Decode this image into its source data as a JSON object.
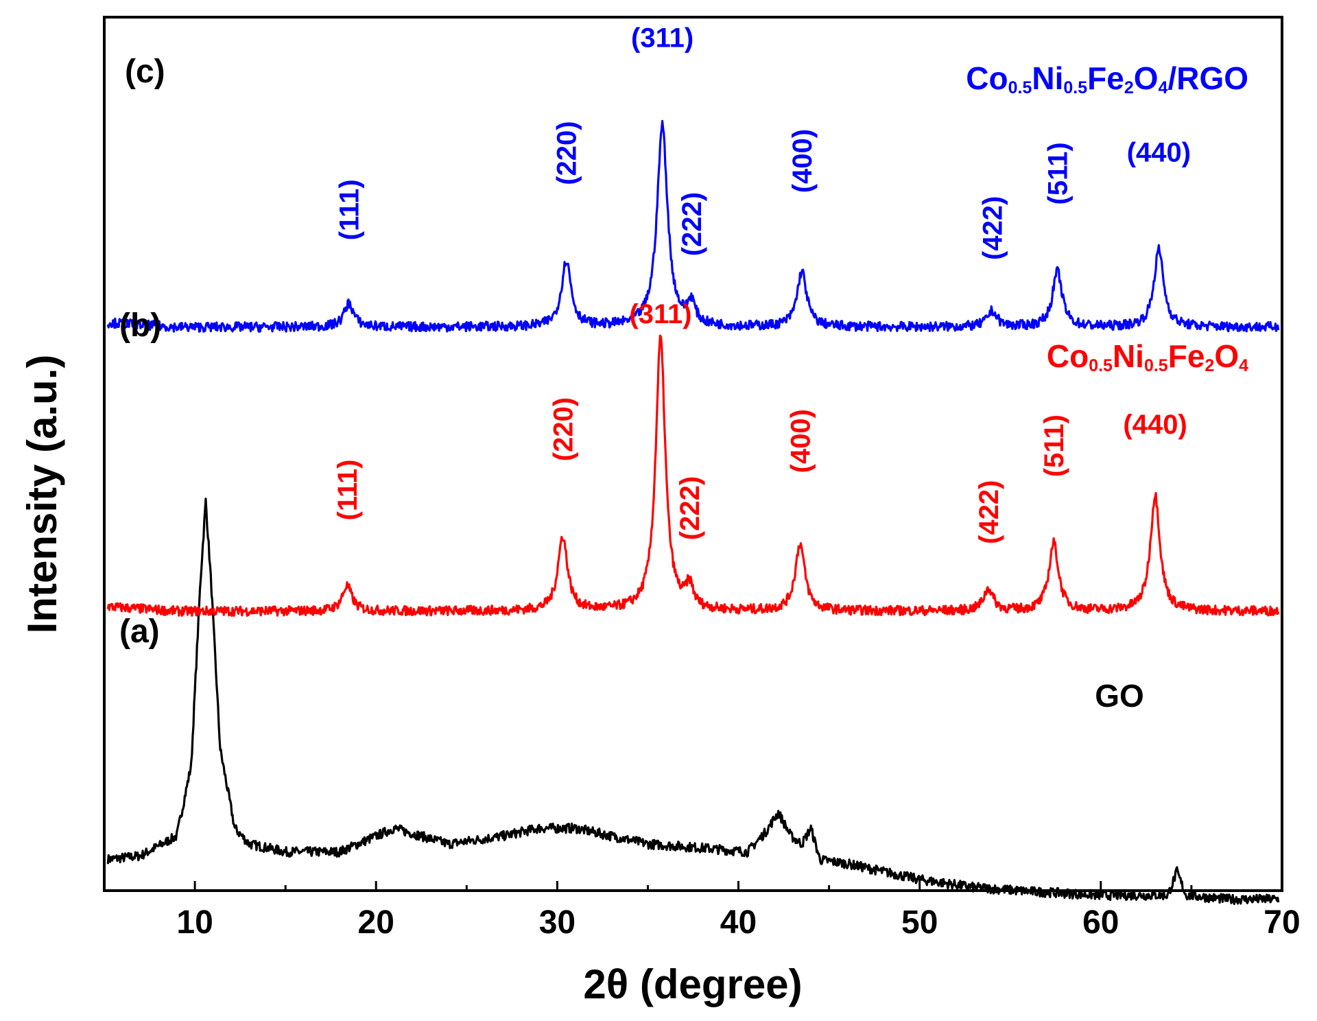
{
  "chart_data": {
    "type": "line",
    "title": "",
    "xlabel": "2θ (degree)",
    "ylabel": "Intensity (a.u.)",
    "xlim": [
      5,
      70
    ],
    "xticks": [
      10,
      20,
      30,
      40,
      50,
      60,
      70
    ],
    "yticks": [],
    "grid": false,
    "series": [
      {
        "key": "a",
        "panel_label": "(a)",
        "name": "GO",
        "name_parts": [
          {
            "t": "GO",
            "sub": false
          }
        ],
        "color": "#000000",
        "baseline": 0.1,
        "points": [
          [
            5,
            0.1
          ],
          [
            7,
            0.105
          ],
          [
            9,
            0.13
          ],
          [
            9.8,
            0.22
          ],
          [
            10.3,
            0.45
          ],
          [
            10.6,
            0.555
          ],
          [
            10.9,
            0.45
          ],
          [
            11.4,
            0.24
          ],
          [
            12.2,
            0.14
          ],
          [
            13,
            0.12
          ],
          [
            15,
            0.11
          ],
          [
            18,
            0.11
          ],
          [
            21,
            0.14
          ],
          [
            24,
            0.12
          ],
          [
            27,
            0.13
          ],
          [
            29,
            0.14
          ],
          [
            31,
            0.14
          ],
          [
            33,
            0.13
          ],
          [
            35,
            0.12
          ],
          [
            38,
            0.115
          ],
          [
            40.5,
            0.11
          ],
          [
            41.5,
            0.135
          ],
          [
            42.2,
            0.16
          ],
          [
            42.9,
            0.13
          ],
          [
            43.5,
            0.12
          ],
          [
            44,
            0.14
          ],
          [
            44.5,
            0.1
          ],
          [
            46,
            0.095
          ],
          [
            48,
            0.085
          ],
          [
            50,
            0.075
          ],
          [
            53,
            0.065
          ],
          [
            56,
            0.06
          ],
          [
            60,
            0.055
          ],
          [
            63.7,
            0.055
          ],
          [
            64.2,
            0.085
          ],
          [
            64.7,
            0.055
          ],
          [
            67,
            0.05
          ],
          [
            70,
            0.05
          ]
        ],
        "peaks": []
      },
      {
        "key": "b",
        "panel_label": "(b)",
        "name": "Co0.5Ni0.5Fe2O4",
        "name_parts": [
          {
            "t": "Co",
            "sub": false
          },
          {
            "t": "0.5",
            "sub": true
          },
          {
            "t": "Ni",
            "sub": false
          },
          {
            "t": "0.5",
            "sub": true
          },
          {
            "t": "Fe",
            "sub": false
          },
          {
            "t": "2",
            "sub": true
          },
          {
            "t": "O",
            "sub": false
          },
          {
            "t": "4",
            "sub": true
          }
        ],
        "color": "#ff0000",
        "baseline": 0.415,
        "peaks": [
          {
            "hkl": "(111)",
            "x": 18.4,
            "height": 0.032,
            "width": 0.32,
            "label_x": 18.4,
            "label_y": 0.53,
            "rotated": true
          },
          {
            "hkl": "(220)",
            "x": 30.3,
            "height": 0.094,
            "width": 0.32,
            "label_x": 30.3,
            "label_y": 0.605,
            "rotated": true
          },
          {
            "hkl": "(311)",
            "x": 35.7,
            "height": 0.345,
            "width": 0.32,
            "label_x": 35.7,
            "label_y": 0.78,
            "rotated": false
          },
          {
            "hkl": "(222)",
            "x": 37.3,
            "height": 0.028,
            "width": 0.25,
            "label_x": 37.3,
            "label_y": 0.505,
            "rotated": true
          },
          {
            "hkl": "(400)",
            "x": 43.4,
            "height": 0.085,
            "width": 0.32,
            "label_x": 43.4,
            "label_y": 0.59,
            "rotated": true
          },
          {
            "hkl": "(422)",
            "x": 53.8,
            "height": 0.028,
            "width": 0.32,
            "label_x": 53.8,
            "label_y": 0.5,
            "rotated": true
          },
          {
            "hkl": "(511)",
            "x": 57.4,
            "height": 0.086,
            "width": 0.32,
            "label_x": 57.4,
            "label_y": 0.585,
            "rotated": true
          },
          {
            "hkl": "(440)",
            "x": 63.0,
            "height": 0.147,
            "width": 0.32,
            "label_x": 63.0,
            "label_y": 0.64,
            "rotated": false
          }
        ]
      },
      {
        "key": "c",
        "panel_label": "(c)",
        "name": "Co0.5Ni0.5Fe2O4/RGO",
        "name_parts": [
          {
            "t": "Co",
            "sub": false
          },
          {
            "t": "0.5",
            "sub": true
          },
          {
            "t": "Ni",
            "sub": false
          },
          {
            "t": "0.5",
            "sub": true
          },
          {
            "t": "Fe",
            "sub": false
          },
          {
            "t": "2",
            "sub": true
          },
          {
            "t": "O",
            "sub": false
          },
          {
            "t": "4",
            "sub": true
          },
          {
            "t": "/RGO",
            "sub": false
          }
        ],
        "color": "#0000ff",
        "baseline": 0.775,
        "peaks": [
          {
            "hkl": "(111)",
            "x": 18.5,
            "height": 0.03,
            "width": 0.32,
            "label_x": 18.5,
            "label_y": 0.885,
            "rotated": true
          },
          {
            "hkl": "(220)",
            "x": 30.5,
            "height": 0.084,
            "width": 0.32,
            "label_x": 30.5,
            "label_y": 0.955,
            "rotated": true
          },
          {
            "hkl": "(311)",
            "x": 35.8,
            "height": 0.255,
            "width": 0.35,
            "label_x": 35.8,
            "label_y": 1.13,
            "rotated": false
          },
          {
            "hkl": "(222)",
            "x": 37.4,
            "height": 0.028,
            "width": 0.25,
            "label_x": 37.4,
            "label_y": 0.865,
            "rotated": true
          },
          {
            "hkl": "(400)",
            "x": 43.5,
            "height": 0.07,
            "width": 0.32,
            "label_x": 43.5,
            "label_y": 0.945,
            "rotated": true
          },
          {
            "hkl": "(422)",
            "x": 54.0,
            "height": 0.02,
            "width": 0.32,
            "label_x": 54.0,
            "label_y": 0.86,
            "rotated": true
          },
          {
            "hkl": "(511)",
            "x": 57.6,
            "height": 0.07,
            "width": 0.32,
            "label_x": 57.6,
            "label_y": 0.93,
            "rotated": true
          },
          {
            "hkl": "(440)",
            "x": 63.2,
            "height": 0.098,
            "width": 0.32,
            "label_x": 63.2,
            "label_y": 0.985,
            "rotated": false
          }
        ]
      }
    ]
  }
}
